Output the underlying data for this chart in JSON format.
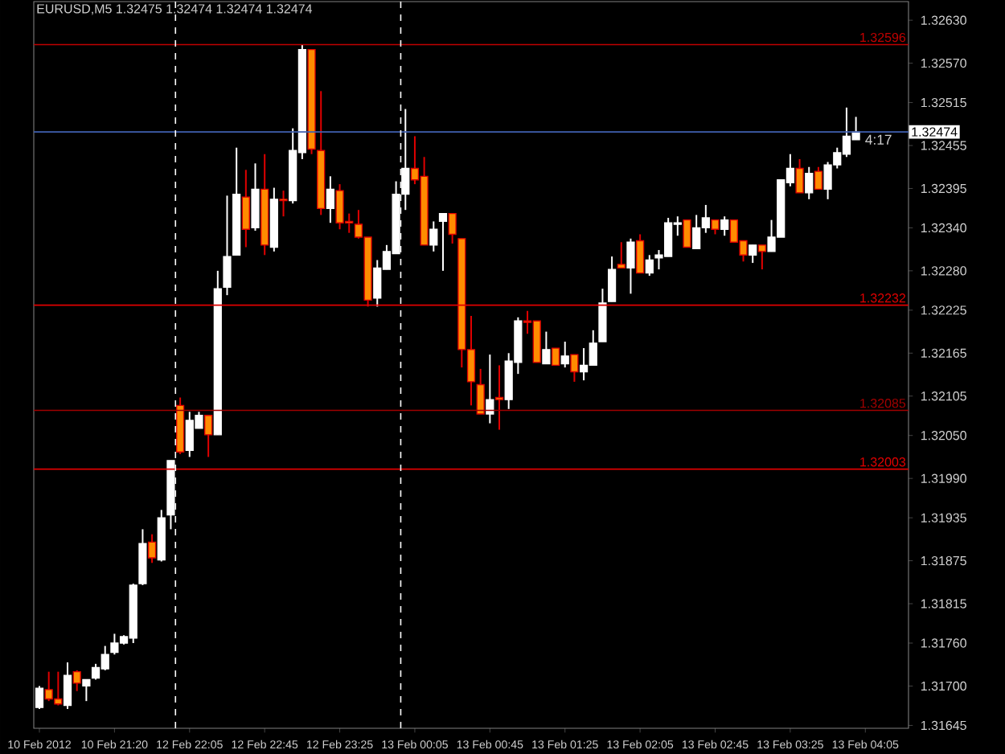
{
  "chart_data": {
    "type": "candlestick",
    "title": "EURUSD,M5  1.32475 1.32474 1.32474 1.32474",
    "annotations": [
      "4:17"
    ],
    "categories": [
      "10 Feb 2012",
      null,
      null,
      null,
      null,
      null,
      null,
      null,
      "10 Feb 21:20",
      null,
      null,
      null,
      null,
      null,
      null,
      null,
      "12 Feb 22:05",
      null,
      null,
      null,
      null,
      null,
      null,
      null,
      "12 Feb 22:45",
      null,
      null,
      null,
      null,
      null,
      null,
      null,
      "12 Feb 23:25",
      null,
      null,
      null,
      null,
      null,
      null,
      null,
      "13 Feb 00:05",
      null,
      null,
      null,
      null,
      null,
      null,
      null,
      "13 Feb 00:45",
      null,
      null,
      null,
      null,
      null,
      null,
      null,
      "13 Feb 01:25",
      null,
      null,
      null,
      null,
      null,
      null,
      null,
      "13 Feb 02:05",
      null,
      null,
      null,
      null,
      null,
      null,
      null,
      "13 Feb 02:45",
      null,
      null,
      null,
      null,
      null,
      null,
      null,
      "13 Feb 03:25",
      null,
      null,
      null,
      null,
      null,
      null,
      null,
      "13 Feb 04:05"
    ],
    "ohlc": [
      [
        1.3167,
        1.317,
        1.31668,
        1.31697
      ],
      [
        1.31695,
        1.3172,
        1.31679,
        1.31682
      ],
      [
        1.31682,
        1.3172,
        1.31673,
        1.31675
      ],
      [
        1.31673,
        1.31733,
        1.31668,
        1.31715
      ],
      [
        1.3172,
        1.31722,
        1.31693,
        1.31704
      ],
      [
        1.317,
        1.31709,
        1.31679,
        1.31709
      ],
      [
        1.31711,
        1.31731,
        1.31709,
        1.31726
      ],
      [
        1.31724,
        1.31756,
        1.31722,
        1.31744
      ],
      [
        1.31747,
        1.31773,
        1.31744,
        1.3176
      ],
      [
        1.3176,
        1.31771,
        1.31758,
        1.31769
      ],
      [
        1.31767,
        1.31843,
        1.3176,
        1.31841
      ],
      [
        1.31843,
        1.31919,
        1.31841,
        1.31899
      ],
      [
        1.31901,
        1.31912,
        1.31872,
        1.31879
      ],
      [
        1.31876,
        1.31946,
        1.31874,
        1.31935
      ],
      [
        1.31939,
        1.32015,
        1.31919,
        1.32015
      ],
      [
        1.32092,
        1.32103,
        1.32024,
        1.32027
      ],
      [
        1.32029,
        1.32083,
        1.3202,
        1.32071
      ],
      [
        1.3206,
        1.32083,
        1.3206,
        1.32078
      ],
      [
        1.32078,
        1.32078,
        1.3202,
        1.32051
      ],
      [
        1.32051,
        1.3228,
        1.32051,
        1.32255
      ],
      [
        1.32257,
        1.32385,
        1.32246,
        1.323
      ],
      [
        1.32302,
        1.32452,
        1.32302,
        1.32387
      ],
      [
        1.32383,
        1.32421,
        1.32313,
        1.32338
      ],
      [
        1.3234,
        1.3243,
        1.32336,
        1.32394
      ],
      [
        1.32394,
        1.32443,
        1.32302,
        1.32316
      ],
      [
        1.32313,
        1.32396,
        1.32307,
        1.3238
      ],
      [
        1.3238,
        1.32392,
        1.32356,
        1.32378
      ],
      [
        1.32378,
        1.32479,
        1.32374,
        1.32448
      ],
      [
        1.32445,
        1.32596,
        1.32436,
        1.32589
      ],
      [
        1.32589,
        1.32589,
        1.32443,
        1.3245
      ],
      [
        1.32448,
        1.32531,
        1.32358,
        1.32367
      ],
      [
        1.32367,
        1.32412,
        1.32347,
        1.32394
      ],
      [
        1.32392,
        1.32401,
        1.32338,
        1.32347
      ],
      [
        1.32349,
        1.3236,
        1.32333,
        1.32347
      ],
      [
        1.32345,
        1.32365,
        1.32325,
        1.32327
      ],
      [
        1.32327,
        1.32327,
        1.3223,
        1.32239
      ],
      [
        1.32242,
        1.32295,
        1.3223,
        1.32284
      ],
      [
        1.32282,
        1.32316,
        1.32282,
        1.32307
      ],
      [
        1.32304,
        1.32405,
        1.32304,
        1.32387
      ],
      [
        1.32387,
        1.32506,
        1.32365,
        1.32423
      ],
      [
        1.32423,
        1.32468,
        1.32401,
        1.32407
      ],
      [
        1.32412,
        1.32439,
        1.32316,
        1.32316
      ],
      [
        1.32316,
        1.32349,
        1.32307,
        1.32338
      ],
      [
        1.32349,
        1.3236,
        1.3228,
        1.3236
      ],
      [
        1.3236,
        1.3236,
        1.32318,
        1.32331
      ],
      [
        1.32325,
        1.32325,
        1.32145,
        1.3217
      ],
      [
        1.3217,
        1.32217,
        1.32092,
        1.32125
      ],
      [
        1.32121,
        1.32143,
        1.3208,
        1.3208
      ],
      [
        1.3208,
        1.32163,
        1.32067,
        1.321
      ],
      [
        1.32103,
        1.32148,
        1.32058,
        1.321
      ],
      [
        1.321,
        1.32165,
        1.32087,
        1.32154
      ],
      [
        1.32152,
        1.32215,
        1.32136,
        1.3221
      ],
      [
        1.3221,
        1.32224,
        1.32192,
        1.32208
      ],
      [
        1.3221,
        1.3221,
        1.32152,
        1.32152
      ],
      [
        1.3215,
        1.32195,
        1.3215,
        1.3217
      ],
      [
        1.32172,
        1.32172,
        1.32148,
        1.32148
      ],
      [
        1.3215,
        1.32181,
        1.32145,
        1.32161
      ],
      [
        1.32163,
        1.32163,
        1.32125,
        1.32139
      ],
      [
        1.32139,
        1.32172,
        1.32127,
        1.32148
      ],
      [
        1.32148,
        1.32197,
        1.32148,
        1.32179
      ],
      [
        1.32181,
        1.32255,
        1.32181,
        1.32235
      ],
      [
        1.32237,
        1.323,
        1.32237,
        1.32282
      ],
      [
        1.32289,
        1.3232,
        1.32284,
        1.32284
      ],
      [
        1.32284,
        1.32325,
        1.32248,
        1.3232
      ],
      [
        1.32322,
        1.32331,
        1.32277,
        1.32277
      ],
      [
        1.32277,
        1.32302,
        1.32273,
        1.32295
      ],
      [
        1.32298,
        1.32309,
        1.32282,
        1.32302
      ],
      [
        1.323,
        1.32354,
        1.323,
        1.32347
      ],
      [
        1.32345,
        1.32356,
        1.32329,
        1.32347
      ],
      [
        1.32351,
        1.32351,
        1.32313,
        1.32313
      ],
      [
        1.32311,
        1.32358,
        1.32311,
        1.3234
      ],
      [
        1.3234,
        1.32372,
        1.32333,
        1.32354
      ],
      [
        1.32351,
        1.32351,
        1.32331,
        1.32338
      ],
      [
        1.32338,
        1.32356,
        1.32329,
        1.32351
      ],
      [
        1.32351,
        1.32351,
        1.3232,
        1.3232
      ],
      [
        1.32322,
        1.32322,
        1.32293,
        1.32302
      ],
      [
        1.32302,
        1.32316,
        1.32291,
        1.32316
      ],
      [
        1.32316,
        1.32316,
        1.32282,
        1.32307
      ],
      [
        1.32307,
        1.32351,
        1.32307,
        1.32327
      ],
      [
        1.32327,
        1.32407,
        1.32327,
        1.32407
      ],
      [
        1.32403,
        1.32443,
        1.32398,
        1.32423
      ],
      [
        1.32423,
        1.32436,
        1.32389,
        1.32389
      ],
      [
        1.32389,
        1.32425,
        1.3238,
        1.32416
      ],
      [
        1.32419,
        1.32425,
        1.32394,
        1.32394
      ],
      [
        1.32394,
        1.32432,
        1.3238,
        1.32428
      ],
      [
        1.32428,
        1.32452,
        1.32423,
        1.32445
      ],
      [
        1.32443,
        1.32508,
        1.32439,
        1.32468
      ],
      [
        1.32463,
        1.32495,
        1.32463,
        1.32474
      ],
      null
    ],
    "colors": [
      "#ffffff",
      "#ff8c00",
      "#ff8c00",
      "#ffffff",
      "#ff8c00",
      "#ffffff",
      "#ffffff",
      "#ffffff",
      "#ffffff",
      "#ffffff",
      "#ffffff",
      "#ffffff",
      "#ff8c00",
      "#ffffff",
      "#ffffff",
      "#ff8c00",
      "#ffffff",
      "#ffffff",
      "#ff8c00",
      "#ffffff",
      "#ffffff",
      "#ffffff",
      "#ff8c00",
      "#ffffff",
      "#ff8c00",
      "#ffffff",
      "#ff8c00",
      "#ffffff",
      "#ffffff",
      "#ff8c00",
      "#ff8c00",
      "#ffffff",
      "#ff8c00",
      "#ff8c00",
      "#ff8c00",
      "#ff8c00",
      "#ffffff",
      "#ffffff",
      "#ffffff",
      "#ffffff",
      "#ff8c00",
      "#ff8c00",
      "#ffffff",
      "#ffffff",
      "#ff8c00",
      "#ff8c00",
      "#ff8c00",
      "#ff8c00",
      "#ffffff",
      "#ff8c00",
      "#ffffff",
      "#ffffff",
      "#ff8c00",
      "#ff8c00",
      "#ffffff",
      "#ff8c00",
      "#ffffff",
      "#ff8c00",
      "#ffffff",
      "#ffffff",
      "#ffffff",
      "#ffffff",
      "#ff8c00",
      "#ffffff",
      "#ff8c00",
      "#ffffff",
      "#ffffff",
      "#ffffff",
      "#ffffff",
      "#ff8c00",
      "#ffffff",
      "#ffffff",
      "#ff8c00",
      "#ffffff",
      "#ff8c00",
      "#ff8c00",
      "#ffffff",
      "#ff8c00",
      "#ffffff",
      "#ffffff",
      "#ffffff",
      "#ff8c00",
      "#ffffff",
      "#ff8c00",
      "#ffffff",
      "#ffffff",
      "#ffffff",
      "#ffffff",
      null
    ],
    "ylim": [
      1.31641,
      1.32656
    ],
    "yticks": [
      {
        "value": 1.3263,
        "label": "1.32630"
      },
      {
        "value": 1.3257,
        "label": "1.32570"
      },
      1.32515,
      1.32455,
      1.32395,
      {
        "value": 1.3234,
        "label": "1.32340"
      },
      {
        "value": 1.3228,
        "label": "1.32280"
      },
      1.32225,
      1.32165,
      1.32105,
      {
        "value": 1.3205,
        "label": "1.32050"
      },
      {
        "value": 1.3199,
        "label": "1.31990"
      },
      1.31935,
      1.31875,
      1.31815,
      {
        "value": 1.3176,
        "label": "1.31760"
      },
      {
        "value": 1.317,
        "label": "1.31700"
      },
      1.31645
    ],
    "ref_lines": [
      {
        "axis": "y",
        "value": 1.32596,
        "label": "1.32596",
        "color": "#c00000"
      },
      {
        "axis": "y",
        "value": 1.32232,
        "label": "1.32232",
        "color": "#e00000"
      },
      {
        "axis": "y",
        "value": 1.32085,
        "label": "1.32085",
        "color": "#a00000"
      },
      {
        "axis": "y",
        "value": 1.32003,
        "label": "1.32003",
        "color": "#e00000"
      },
      {
        "axis": "y",
        "value": 1.32474,
        "label": "1.32474",
        "color": "#4060b0"
      }
    ]
  }
}
